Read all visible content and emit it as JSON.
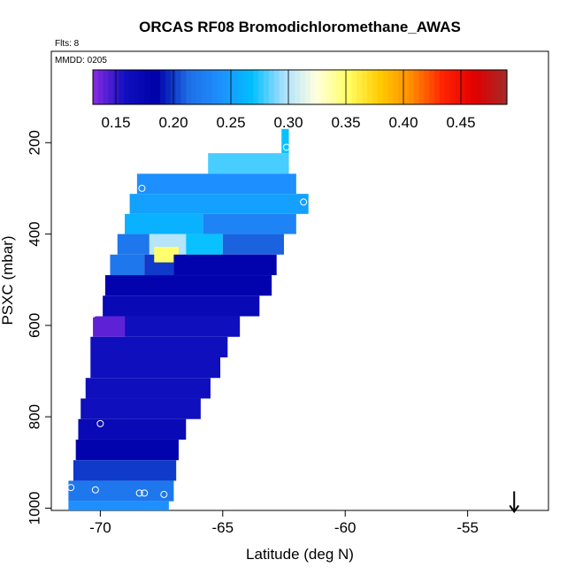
{
  "chart_data": {
    "type": "heatmap",
    "title": "ORCAS RF08 Bromodichloromethane_AWAS",
    "flights_label": "Flts: 8",
    "date_label": "MMDD: 0205",
    "xlabel": "Latitude (deg N)",
    "ylabel": "PSXC (mbar)",
    "xlim": [
      -72,
      -51.7
    ],
    "ylim": [
      1005,
      0
    ],
    "x_ticks": [
      -70,
      -65,
      -60,
      -55
    ],
    "x_tick_labels": [
      "-70",
      "-65",
      "-60",
      "-55"
    ],
    "y_ticks": [
      200,
      400,
      600,
      800,
      1000
    ],
    "y_tick_labels": [
      "200",
      "400",
      "600",
      "800",
      "1000"
    ],
    "colorbar": {
      "range": [
        0.13,
        0.49
      ],
      "ticks": [
        0.15,
        0.2,
        0.25,
        0.3,
        0.35,
        0.4,
        0.45
      ],
      "tick_labels": [
        "0.15",
        "0.20",
        "0.25",
        "0.30",
        "0.35",
        "0.40",
        "0.45"
      ],
      "stops": [
        "#8a2be2",
        "#1010c0",
        "#0000a8",
        "#1e6ee6",
        "#1e90ff",
        "#00bfff",
        "#aae0ff",
        "#ffffe0",
        "#ffff66",
        "#ffcc00",
        "#ff8c00",
        "#ff2200",
        "#e00000",
        "#a52a2a"
      ]
    },
    "cells": [
      {
        "lat0": -62.6,
        "lat1": -62.3,
        "p0": 170,
        "p1": 223,
        "v": 0.27
      },
      {
        "lat0": -65.6,
        "lat1": -62.3,
        "p0": 223,
        "p1": 268,
        "v": 0.28
      },
      {
        "lat0": -68.5,
        "lat1": -62.0,
        "p0": 268,
        "p1": 312,
        "v": 0.24
      },
      {
        "lat0": -68.8,
        "lat1": -61.5,
        "p0": 312,
        "p1": 356,
        "v": 0.25
      },
      {
        "lat0": -69.0,
        "lat1": -65.8,
        "p0": 356,
        "p1": 400,
        "v": 0.26
      },
      {
        "lat0": -65.8,
        "lat1": -62.0,
        "p0": 356,
        "p1": 400,
        "v": 0.23
      },
      {
        "lat0": -68.0,
        "lat1": -66.5,
        "p0": 400,
        "p1": 445,
        "v": 0.3
      },
      {
        "lat0": -66.5,
        "lat1": -65.0,
        "p0": 400,
        "p1": 445,
        "v": 0.27
      },
      {
        "lat0": -65.0,
        "lat1": -62.5,
        "p0": 400,
        "p1": 445,
        "v": 0.21
      },
      {
        "lat0": -69.3,
        "lat1": -68.0,
        "p0": 400,
        "p1": 445,
        "v": 0.22
      },
      {
        "lat0": -69.6,
        "lat1": -68.2,
        "p0": 445,
        "p1": 490,
        "v": 0.22
      },
      {
        "lat0": -68.2,
        "lat1": -67.0,
        "p0": 445,
        "p1": 490,
        "v": 0.2
      },
      {
        "lat0": -67.8,
        "lat1": -66.8,
        "p0": 428,
        "p1": 462,
        "v": 0.35
      },
      {
        "lat0": -67.0,
        "lat1": -62.8,
        "p0": 445,
        "p1": 490,
        "v": 0.18
      },
      {
        "lat0": -69.8,
        "lat1": -63.0,
        "p0": 490,
        "p1": 535,
        "v": 0.18
      },
      {
        "lat0": -69.9,
        "lat1": -63.5,
        "p0": 535,
        "p1": 580,
        "v": 0.17
      },
      {
        "lat0": -70.3,
        "lat1": -69.0,
        "p0": 580,
        "p1": 625,
        "v": 0.14
      },
      {
        "lat0": -69.0,
        "lat1": -64.3,
        "p0": 580,
        "p1": 625,
        "v": 0.16
      },
      {
        "lat0": -70.4,
        "lat1": -64.8,
        "p0": 625,
        "p1": 670,
        "v": 0.16
      },
      {
        "lat0": -70.4,
        "lat1": -65.1,
        "p0": 670,
        "p1": 715,
        "v": 0.16
      },
      {
        "lat0": -70.6,
        "lat1": -65.5,
        "p0": 715,
        "p1": 760,
        "v": 0.16
      },
      {
        "lat0": -70.8,
        "lat1": -65.9,
        "p0": 760,
        "p1": 805,
        "v": 0.16
      },
      {
        "lat0": -70.9,
        "lat1": -66.5,
        "p0": 805,
        "p1": 850,
        "v": 0.17
      },
      {
        "lat0": -71.0,
        "lat1": -66.8,
        "p0": 850,
        "p1": 895,
        "v": 0.18
      },
      {
        "lat0": -71.1,
        "lat1": -66.9,
        "p0": 895,
        "p1": 940,
        "v": 0.2
      },
      {
        "lat0": -71.3,
        "lat1": -67.0,
        "p0": 940,
        "p1": 985,
        "v": 0.22
      },
      {
        "lat0": -71.3,
        "lat1": -67.2,
        "p0": 985,
        "p1": 1005,
        "v": 0.24
      }
    ],
    "points": [
      {
        "lat": -62.4,
        "p": 210
      },
      {
        "lat": -68.3,
        "p": 300
      },
      {
        "lat": -61.7,
        "p": 330
      },
      {
        "lat": -70.3,
        "p": 575
      },
      {
        "lat": -70.0,
        "p": 815
      },
      {
        "lat": -71.2,
        "p": 955
      },
      {
        "lat": -70.2,
        "p": 960
      },
      {
        "lat": -68.4,
        "p": 967
      },
      {
        "lat": -68.2,
        "p": 967
      },
      {
        "lat": -67.4,
        "p": 970
      }
    ],
    "arrow": {
      "lat": -53.1,
      "p": 1000
    }
  }
}
